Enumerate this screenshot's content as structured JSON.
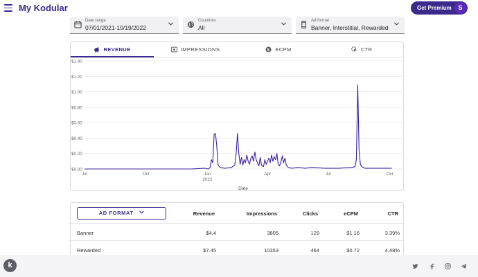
{
  "app": {
    "title": "My Kodular",
    "premium_label": "Get Premium",
    "avatar_letter": "S"
  },
  "filters": [
    {
      "label": "Date range",
      "value": "07/01/2021-10/19/2022",
      "icon": "calendar-icon"
    },
    {
      "label": "Countries",
      "value": "All",
      "icon": "globe-icon"
    },
    {
      "label": "Ad format",
      "value": "Banner, Interstitial, Rewarded",
      "icon": "phone-icon"
    }
  ],
  "tabs": [
    {
      "label": "REVENUE",
      "icon": "piggy-bank-icon",
      "active": true
    },
    {
      "label": "IMPRESSIONS",
      "icon": "view-icon",
      "active": false
    },
    {
      "label": "ECPM",
      "icon": "dollar-circle-icon",
      "active": false
    },
    {
      "label": "CTR",
      "icon": "click-icon",
      "active": false
    }
  ],
  "chart_data": {
    "type": "line",
    "title": "",
    "xlabel": "Date",
    "ylabel": "",
    "ylim": [
      0,
      1.4
    ],
    "y_ticks": [
      "$0.00",
      "$0.20",
      "$0.40",
      "$0.60",
      "$0.80",
      "$1.00",
      "$1.20",
      "$1.40"
    ],
    "x_ticks": [
      {
        "label": "Jul",
        "day": 0
      },
      {
        "label": "Oct",
        "day": 92
      },
      {
        "label": "Jan",
        "sub": "2022",
        "day": 184
      },
      {
        "label": "Apr",
        "day": 274
      },
      {
        "label": "Jul",
        "day": 365
      },
      {
        "label": "Oct",
        "day": 457
      }
    ],
    "color": "#3b1fa0",
    "series": [
      {
        "name": "Revenue",
        "points": [
          [
            0,
            0
          ],
          [
            160,
            0
          ],
          [
            180,
            0.01
          ],
          [
            185,
            0
          ],
          [
            188,
            0.02
          ],
          [
            190,
            0.12
          ],
          [
            192,
            0.08
          ],
          [
            194,
            0.45
          ],
          [
            196,
            0.46
          ],
          [
            198,
            0.3
          ],
          [
            200,
            0.05
          ],
          [
            203,
            0.02
          ],
          [
            210,
            0.01
          ],
          [
            220,
            0.02
          ],
          [
            225,
            0.05
          ],
          [
            227,
            0.2
          ],
          [
            229,
            0.46
          ],
          [
            231,
            0.2
          ],
          [
            233,
            0.06
          ],
          [
            235,
            0.15
          ],
          [
            237,
            0.05
          ],
          [
            239,
            0.12
          ],
          [
            241,
            0.08
          ],
          [
            243,
            0.18
          ],
          [
            245,
            0.1
          ],
          [
            247,
            0.06
          ],
          [
            249,
            0.14
          ],
          [
            251,
            0.17
          ],
          [
            253,
            0.1
          ],
          [
            255,
            0.22
          ],
          [
            257,
            0.12
          ],
          [
            259,
            0.08
          ],
          [
            261,
            0.04
          ],
          [
            263,
            0.15
          ],
          [
            265,
            0.05
          ],
          [
            268,
            0.03
          ],
          [
            270,
            0.12
          ],
          [
            272,
            0.06
          ],
          [
            274,
            0.1
          ],
          [
            276,
            0.14
          ],
          [
            278,
            0.08
          ],
          [
            280,
            0.18
          ],
          [
            282,
            0.1
          ],
          [
            284,
            0.16
          ],
          [
            286,
            0.12
          ],
          [
            288,
            0.2
          ],
          [
            290,
            0.06
          ],
          [
            292,
            0.04
          ],
          [
            294,
            0.09
          ],
          [
            296,
            0.17
          ],
          [
            298,
            0.08
          ],
          [
            300,
            0.14
          ],
          [
            302,
            0.05
          ],
          [
            305,
            0.02
          ],
          [
            310,
            0.01
          ],
          [
            320,
            0.02
          ],
          [
            330,
            0.01
          ],
          [
            340,
            0.02
          ],
          [
            360,
            0.01
          ],
          [
            380,
            0.01
          ],
          [
            400,
            0.02
          ],
          [
            405,
            0.03
          ],
          [
            407,
            0.12
          ],
          [
            409,
            1.09
          ],
          [
            411,
            0.25
          ],
          [
            413,
            0.06
          ],
          [
            415,
            0.03
          ],
          [
            420,
            0.01
          ],
          [
            440,
            0.01
          ],
          [
            460,
            0.01
          ]
        ]
      }
    ]
  },
  "table": {
    "ad_format_label": "AD FORMAT",
    "headers": {
      "revenue": "Revenue",
      "impressions": "Impressions",
      "clicks": "Clicks",
      "ecpm": "eCPM",
      "ctr": "CTR"
    },
    "rows": [
      {
        "name": "Banner",
        "revenue": "$4.4",
        "impressions": "3805",
        "clicks": "129",
        "ecpm": "$1.16",
        "ctr": "3.39%"
      },
      {
        "name": "Rewarded",
        "revenue": "$7.45",
        "impressions": "10353",
        "clicks": "464",
        "ecpm": "$0.72",
        "ctr": "4.48%"
      }
    ]
  },
  "footer": {
    "logo_letter": "k",
    "social": [
      "twitter-icon",
      "facebook-icon",
      "instagram-icon",
      "telegram-icon"
    ]
  }
}
